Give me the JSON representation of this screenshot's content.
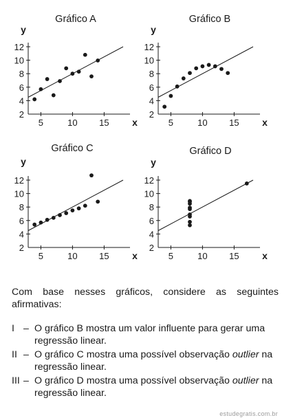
{
  "chart_data": [
    {
      "type": "scatter",
      "title": "Gráfico A",
      "xlabel": "x",
      "ylabel": "y",
      "xlim": [
        3,
        18
      ],
      "ylim": [
        2,
        13
      ],
      "xticks": [
        5,
        10,
        15
      ],
      "yticks": [
        2,
        4,
        6,
        8,
        10,
        12
      ],
      "points": [
        [
          4,
          4.2
        ],
        [
          5,
          5.7
        ],
        [
          6,
          7.2
        ],
        [
          7,
          4.8
        ],
        [
          8,
          6.9
        ],
        [
          9,
          8.8
        ],
        [
          10,
          8.0
        ],
        [
          11,
          8.3
        ],
        [
          12,
          10.8
        ],
        [
          13,
          7.6
        ],
        [
          14,
          9.96
        ]
      ],
      "fit_line": [
        3,
        0.5
      ]
    },
    {
      "type": "scatter",
      "title": "Gráfico B",
      "xlabel": "x",
      "ylabel": "y",
      "xlim": [
        3,
        18
      ],
      "ylim": [
        2,
        13
      ],
      "xticks": [
        5,
        10,
        15
      ],
      "yticks": [
        2,
        4,
        6,
        8,
        10,
        12
      ],
      "points": [
        [
          4,
          3.1
        ],
        [
          5,
          4.7
        ],
        [
          6,
          6.1
        ],
        [
          7,
          7.3
        ],
        [
          8,
          8.1
        ],
        [
          9,
          8.8
        ],
        [
          10,
          9.1
        ],
        [
          11,
          9.3
        ],
        [
          12,
          9.1
        ],
        [
          13,
          8.7
        ],
        [
          14,
          8.1
        ]
      ],
      "fit_line": [
        3,
        0.5
      ]
    },
    {
      "type": "scatter",
      "title": "Gráfico C",
      "xlabel": "x",
      "ylabel": "y",
      "xlim": [
        3,
        18
      ],
      "ylim": [
        2,
        13
      ],
      "xticks": [
        5,
        10,
        15
      ],
      "yticks": [
        2,
        4,
        6,
        8,
        10,
        12
      ],
      "points": [
        [
          4,
          5.4
        ],
        [
          5,
          5.7
        ],
        [
          6,
          6.1
        ],
        [
          7,
          6.4
        ],
        [
          8,
          6.8
        ],
        [
          9,
          7.1
        ],
        [
          10,
          7.5
        ],
        [
          11,
          7.8
        ],
        [
          12,
          8.2
        ],
        [
          13,
          12.7
        ],
        [
          14,
          8.8
        ]
      ],
      "fit_line": [
        3,
        0.5
      ]
    },
    {
      "type": "scatter",
      "title": "Gráfico D",
      "xlabel": "x",
      "ylabel": "y",
      "xlim": [
        3,
        18
      ],
      "ylim": [
        2,
        13
      ],
      "xticks": [
        5,
        10,
        15
      ],
      "yticks": [
        2,
        4,
        6,
        8,
        10,
        12
      ],
      "points": [
        [
          8,
          5.3
        ],
        [
          8,
          5.8
        ],
        [
          8,
          6.6
        ],
        [
          8,
          6.9
        ],
        [
          8,
          7.7
        ],
        [
          8,
          7.9
        ],
        [
          8,
          8.5
        ],
        [
          8,
          8.8
        ],
        [
          8,
          8.9
        ],
        [
          17,
          11.5
        ]
      ],
      "fit_line": [
        3,
        0.5
      ]
    }
  ],
  "question": {
    "intro": "Com base nesses gráficos, considere as seguintes afirmativas:",
    "items": [
      {
        "num": "I",
        "dash": "–",
        "text": "O gráfico B mostra um valor influente para gerar uma regressão linear."
      },
      {
        "num": "II",
        "dash": "–",
        "pre": "O gráfico C mostra uma possível observação ",
        "em": "outlier",
        "post": " na regressão linear."
      },
      {
        "num": "III",
        "dash": "–",
        "pre": "O gráfico D mostra uma possível observação ",
        "em": "outlier",
        "post": " na regressão linear."
      }
    ]
  },
  "watermark": "estudegratis.com.br"
}
